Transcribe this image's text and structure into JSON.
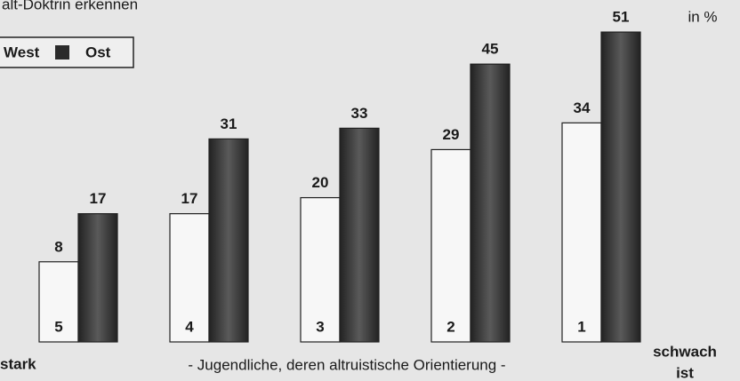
{
  "chart_data": {
    "type": "bar",
    "header": "alt-Doktrin erkennen",
    "unit": "in %",
    "subtitle": "- Jugendliche, deren altruistische Orientierung -",
    "x_label_left": "stark",
    "x_label_right": [
      "schwach",
      "ist"
    ],
    "categories": [
      "5",
      "4",
      "3",
      "2",
      "1"
    ],
    "series": [
      {
        "name": "West",
        "color": "#f7f7f7",
        "values": [
          8,
          17,
          20,
          29,
          34
        ]
      },
      {
        "name": "Ost",
        "color": "#2b2b2b",
        "values": [
          17,
          31,
          33,
          45,
          51
        ]
      }
    ],
    "ylim": [
      -7,
      57
    ]
  }
}
